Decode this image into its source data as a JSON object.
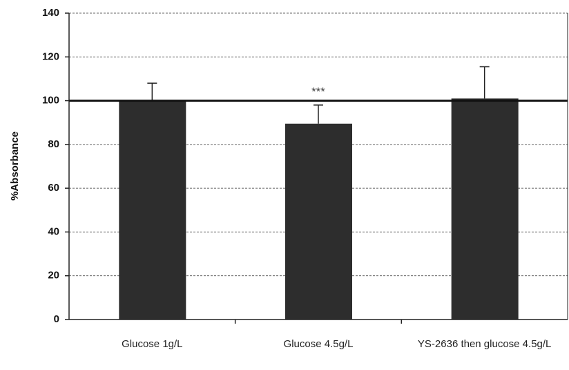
{
  "chart_data": {
    "type": "bar",
    "y_label": "%Absorbance",
    "categories": [
      "Glucose 1g/L",
      "Glucose 4.5g/L",
      "YS-2636 then glucose 4.5g/L"
    ],
    "values": [
      100,
      89.5,
      101
    ],
    "errors": [
      8,
      8.5,
      14.5
    ],
    "color": "#2d2d2d",
    "reference_line": 100,
    "annotation": "***",
    "ylim": [
      0,
      140
    ],
    "yticks": [
      0,
      20,
      40,
      60,
      80,
      100,
      120,
      140
    ],
    "grid": true
  }
}
